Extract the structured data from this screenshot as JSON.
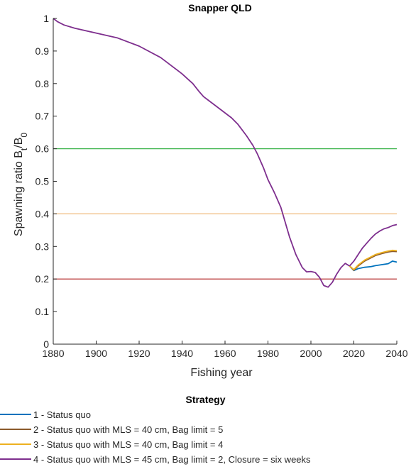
{
  "chart_data": {
    "type": "line",
    "title": "Snapper QLD",
    "xlabel": "Fishing year",
    "ylabel_main": "Spawning ratio B",
    "ylabel_sub1": "t",
    "ylabel_mid": "/B",
    "ylabel_sub2": "0",
    "xlim": [
      1880,
      2040
    ],
    "ylim": [
      0,
      1
    ],
    "xticks": [
      1880,
      1900,
      1920,
      1940,
      1960,
      1980,
      2000,
      2020,
      2040
    ],
    "yticks": [
      0,
      0.1,
      0.2,
      0.3,
      0.4,
      0.5,
      0.6,
      0.7,
      0.8,
      0.9,
      1
    ],
    "ytick_labels": [
      "0",
      "0.1",
      "0.2",
      "0.3",
      "0.4",
      "0.5",
      "0.6",
      "0.7",
      "0.8",
      "0.9",
      "1"
    ],
    "reference_lines": [
      {
        "y": 0.6,
        "color": "#3cb44b"
      },
      {
        "y": 0.4,
        "color": "#f0b878"
      },
      {
        "y": 0.2,
        "color": "#b22222"
      }
    ],
    "historical": {
      "color": "#7e2f8e",
      "x": [
        1880,
        1882,
        1885,
        1890,
        1900,
        1910,
        1920,
        1930,
        1940,
        1945,
        1948,
        1950,
        1952,
        1955,
        1958,
        1960,
        1963,
        1966,
        1970,
        1973,
        1975,
        1978,
        1980,
        1983,
        1986,
        1988,
        1990,
        1993,
        1996,
        1998,
        2000,
        2002,
        2004,
        2006,
        2008,
        2010,
        2012,
        2014,
        2016,
        2018
      ],
      "y": [
        1.0,
        0.99,
        0.98,
        0.97,
        0.955,
        0.94,
        0.915,
        0.88,
        0.83,
        0.8,
        0.775,
        0.76,
        0.75,
        0.735,
        0.72,
        0.71,
        0.695,
        0.675,
        0.64,
        0.61,
        0.585,
        0.54,
        0.505,
        0.465,
        0.42,
        0.375,
        0.33,
        0.275,
        0.235,
        0.222,
        0.223,
        0.22,
        0.205,
        0.18,
        0.175,
        0.19,
        0.215,
        0.235,
        0.248,
        0.24
      ]
    },
    "series": [
      {
        "name": "1 - Status quo",
        "color": "#0072bd",
        "x": [
          2018,
          2020,
          2022,
          2025,
          2028,
          2030,
          2033,
          2036,
          2038,
          2040
        ],
        "y": [
          0.24,
          0.226,
          0.232,
          0.236,
          0.238,
          0.241,
          0.244,
          0.247,
          0.255,
          0.252
        ]
      },
      {
        "name": "2 - Status quo with MLS = 40 cm, Bag limit = 5",
        "color": "#8b5a2b",
        "x": [
          2018,
          2020,
          2022,
          2025,
          2028,
          2030,
          2033,
          2036,
          2038,
          2040
        ],
        "y": [
          0.24,
          0.227,
          0.24,
          0.255,
          0.265,
          0.272,
          0.278,
          0.283,
          0.285,
          0.284
        ]
      },
      {
        "name": "3 - Status quo with MLS = 40 cm, Bag limit = 4",
        "color": "#edb120",
        "x": [
          2018,
          2020,
          2022,
          2025,
          2028,
          2030,
          2033,
          2036,
          2038,
          2040
        ],
        "y": [
          0.24,
          0.229,
          0.243,
          0.258,
          0.268,
          0.275,
          0.281,
          0.286,
          0.288,
          0.287
        ]
      },
      {
        "name": "4 - Status quo with MLS = 45 cm, Bag limit = 2, Closure = six weeks",
        "color": "#7e2f8e",
        "x": [
          2018,
          2020,
          2022,
          2024,
          2026,
          2028,
          2030,
          2032,
          2034,
          2036,
          2038,
          2040
        ],
        "y": [
          0.24,
          0.255,
          0.275,
          0.295,
          0.31,
          0.325,
          0.338,
          0.347,
          0.354,
          0.358,
          0.364,
          0.367
        ]
      }
    ],
    "legend_title": "Strategy",
    "legend_placement": "bottom"
  }
}
